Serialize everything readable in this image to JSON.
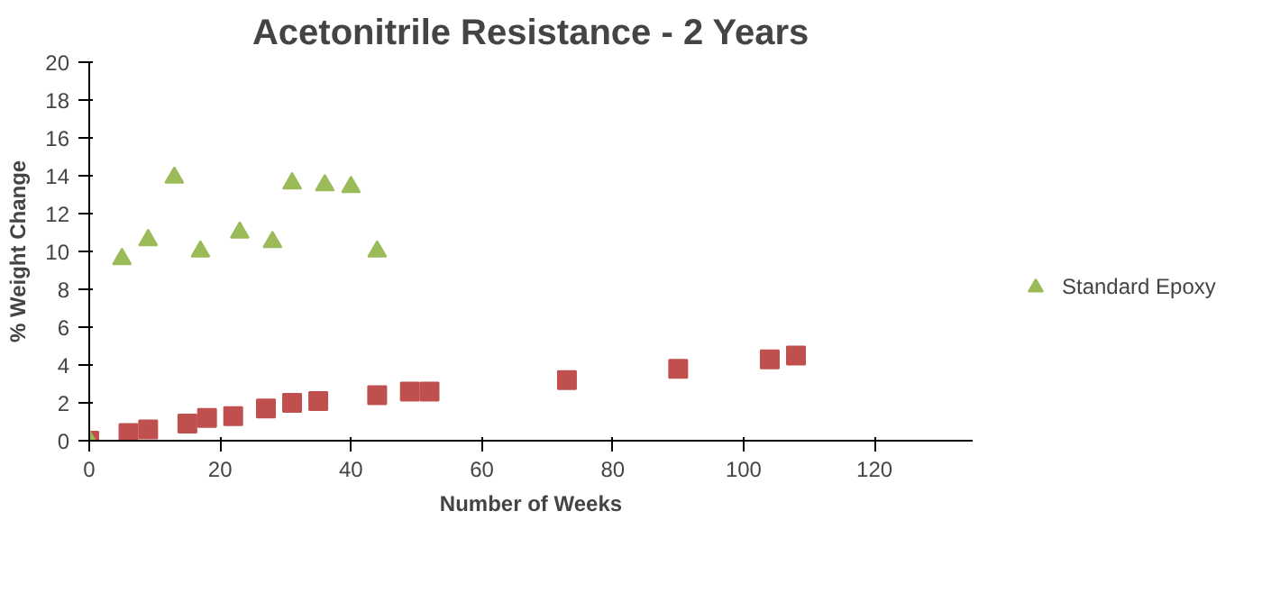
{
  "chart_data": {
    "type": "scatter",
    "title": "Acetonitrile Resistance - 2 Years",
    "xlabel": "Number of Weeks",
    "ylabel": "% Weight Change",
    "xlim": [
      0,
      135
    ],
    "xticks": [
      0,
      20,
      40,
      60,
      80,
      100,
      120
    ],
    "ylim": [
      0,
      20
    ],
    "yticks": [
      0,
      2,
      4,
      6,
      8,
      10,
      12,
      14,
      16,
      18,
      20
    ],
    "grid": false,
    "legend": "right",
    "series": [
      {
        "color": "#c0504d",
        "marker": "square",
        "x": [
          0,
          6,
          9,
          15,
          18,
          22,
          27,
          31,
          35,
          44,
          49,
          52,
          73,
          90,
          104,
          108
        ],
        "values": [
          0,
          0.4,
          0.6,
          0.9,
          1.2,
          1.3,
          1.7,
          2.0,
          2.1,
          2.4,
          2.6,
          2.6,
          3.2,
          3.8,
          4.3,
          4.5
        ]
      },
      {
        "name": "Standard Epoxy",
        "color": "#9bbb59",
        "marker": "triangle",
        "x": [
          0,
          5,
          9,
          13,
          17,
          23,
          28,
          31,
          36,
          40,
          44
        ],
        "values": [
          0,
          9.6,
          10.6,
          13.9,
          10.0,
          11.0,
          10.5,
          13.6,
          13.5,
          13.4,
          10.0
        ]
      }
    ]
  }
}
